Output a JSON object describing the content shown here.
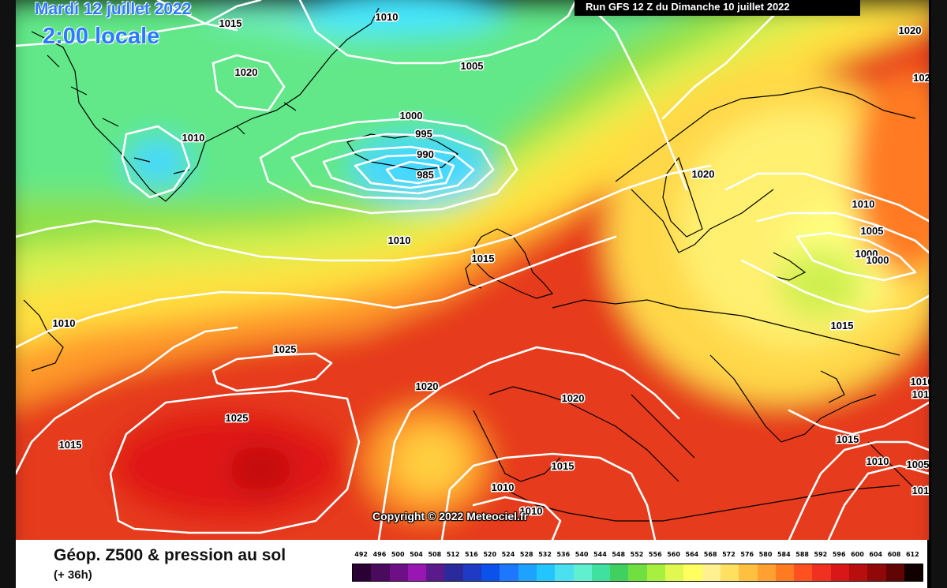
{
  "header": {
    "date": "Mardi 12 juillet 2022",
    "time": "2:00 locale",
    "run": "Run GFS 12 Z du Dimanche 10 juillet 2022"
  },
  "copyright": "Copyright © 2022 Meteociel.fr",
  "footer": {
    "title": "Géop. Z500 & pression au sol",
    "subtitle": "(+ 36h)"
  },
  "legend": {
    "ticks": [
      "492",
      "496",
      "500",
      "504",
      "508",
      "512",
      "516",
      "520",
      "524",
      "528",
      "532",
      "536",
      "540",
      "544",
      "548",
      "552",
      "556",
      "560",
      "564",
      "568",
      "572",
      "576",
      "580",
      "584",
      "588",
      "592",
      "596",
      "600",
      "604",
      "608",
      "612"
    ],
    "colors": [
      "#2a0035",
      "#4a0a5e",
      "#6e0f87",
      "#9a16b4",
      "#5a1a8c",
      "#2b2a9c",
      "#1f3ac4",
      "#0a52ea",
      "#1e78ff",
      "#1ea2ff",
      "#23c5ff",
      "#4be0f0",
      "#60f0d0",
      "#40e0a0",
      "#40d060",
      "#70e040",
      "#a8f040",
      "#e0f850",
      "#ffff60",
      "#fff090",
      "#ffe060",
      "#ffc040",
      "#ffa030",
      "#ff7a20",
      "#ff5020",
      "#f03020",
      "#d81818",
      "#b80e0e",
      "#900808",
      "#600404",
      "#100000"
    ]
  },
  "isobars": [
    {
      "id": "1015-nw",
      "text": "1015"
    },
    {
      "id": "1010-top",
      "text": "1010"
    },
    {
      "id": "1020-greenland",
      "text": "1020"
    },
    {
      "id": "1010-greenland",
      "text": "1010"
    },
    {
      "id": "1005-north",
      "text": "1005"
    },
    {
      "id": "1000-low",
      "text": "1000"
    },
    {
      "id": "995-low",
      "text": "995"
    },
    {
      "id": "990-low",
      "text": "990"
    },
    {
      "id": "985-low",
      "text": "985"
    },
    {
      "id": "1010-mid",
      "text": "1010"
    },
    {
      "id": "1015-uk",
      "text": "1015"
    },
    {
      "id": "1020-ne",
      "text": "1020"
    },
    {
      "id": "1020-scand",
      "text": "1020"
    },
    {
      "id": "1010-russia",
      "text": "1010"
    },
    {
      "id": "1005-russia",
      "text": "1005"
    },
    {
      "id": "1000-russia-a",
      "text": "1000"
    },
    {
      "id": "1000-russia-b",
      "text": "1000"
    },
    {
      "id": "1015-east",
      "text": "1015"
    },
    {
      "id": "1010-west",
      "text": "1010"
    },
    {
      "id": "1025-atl-a",
      "text": "1025"
    },
    {
      "id": "1020-atl",
      "text": "1020"
    },
    {
      "id": "1020-iberia",
      "text": "1020"
    },
    {
      "id": "1025-atl-b",
      "text": "1025"
    },
    {
      "id": "1015-sw",
      "text": "1015"
    },
    {
      "id": "1015-med",
      "text": "1015"
    },
    {
      "id": "1010-africa",
      "text": "1010"
    },
    {
      "id": "1010-africa-b",
      "text": "1010"
    },
    {
      "id": "1015-balkan",
      "text": "1015"
    },
    {
      "id": "1010-east-med",
      "text": "1010"
    },
    {
      "id": "1005-east",
      "text": "1005"
    },
    {
      "id": "1015-far-east",
      "text": "1015"
    },
    {
      "id": "1010-far-east",
      "text": "1010"
    },
    {
      "id": "1010-east-edge",
      "text": "1010"
    },
    {
      "id": "1020-ne-edge",
      "text": "102"
    }
  ]
}
